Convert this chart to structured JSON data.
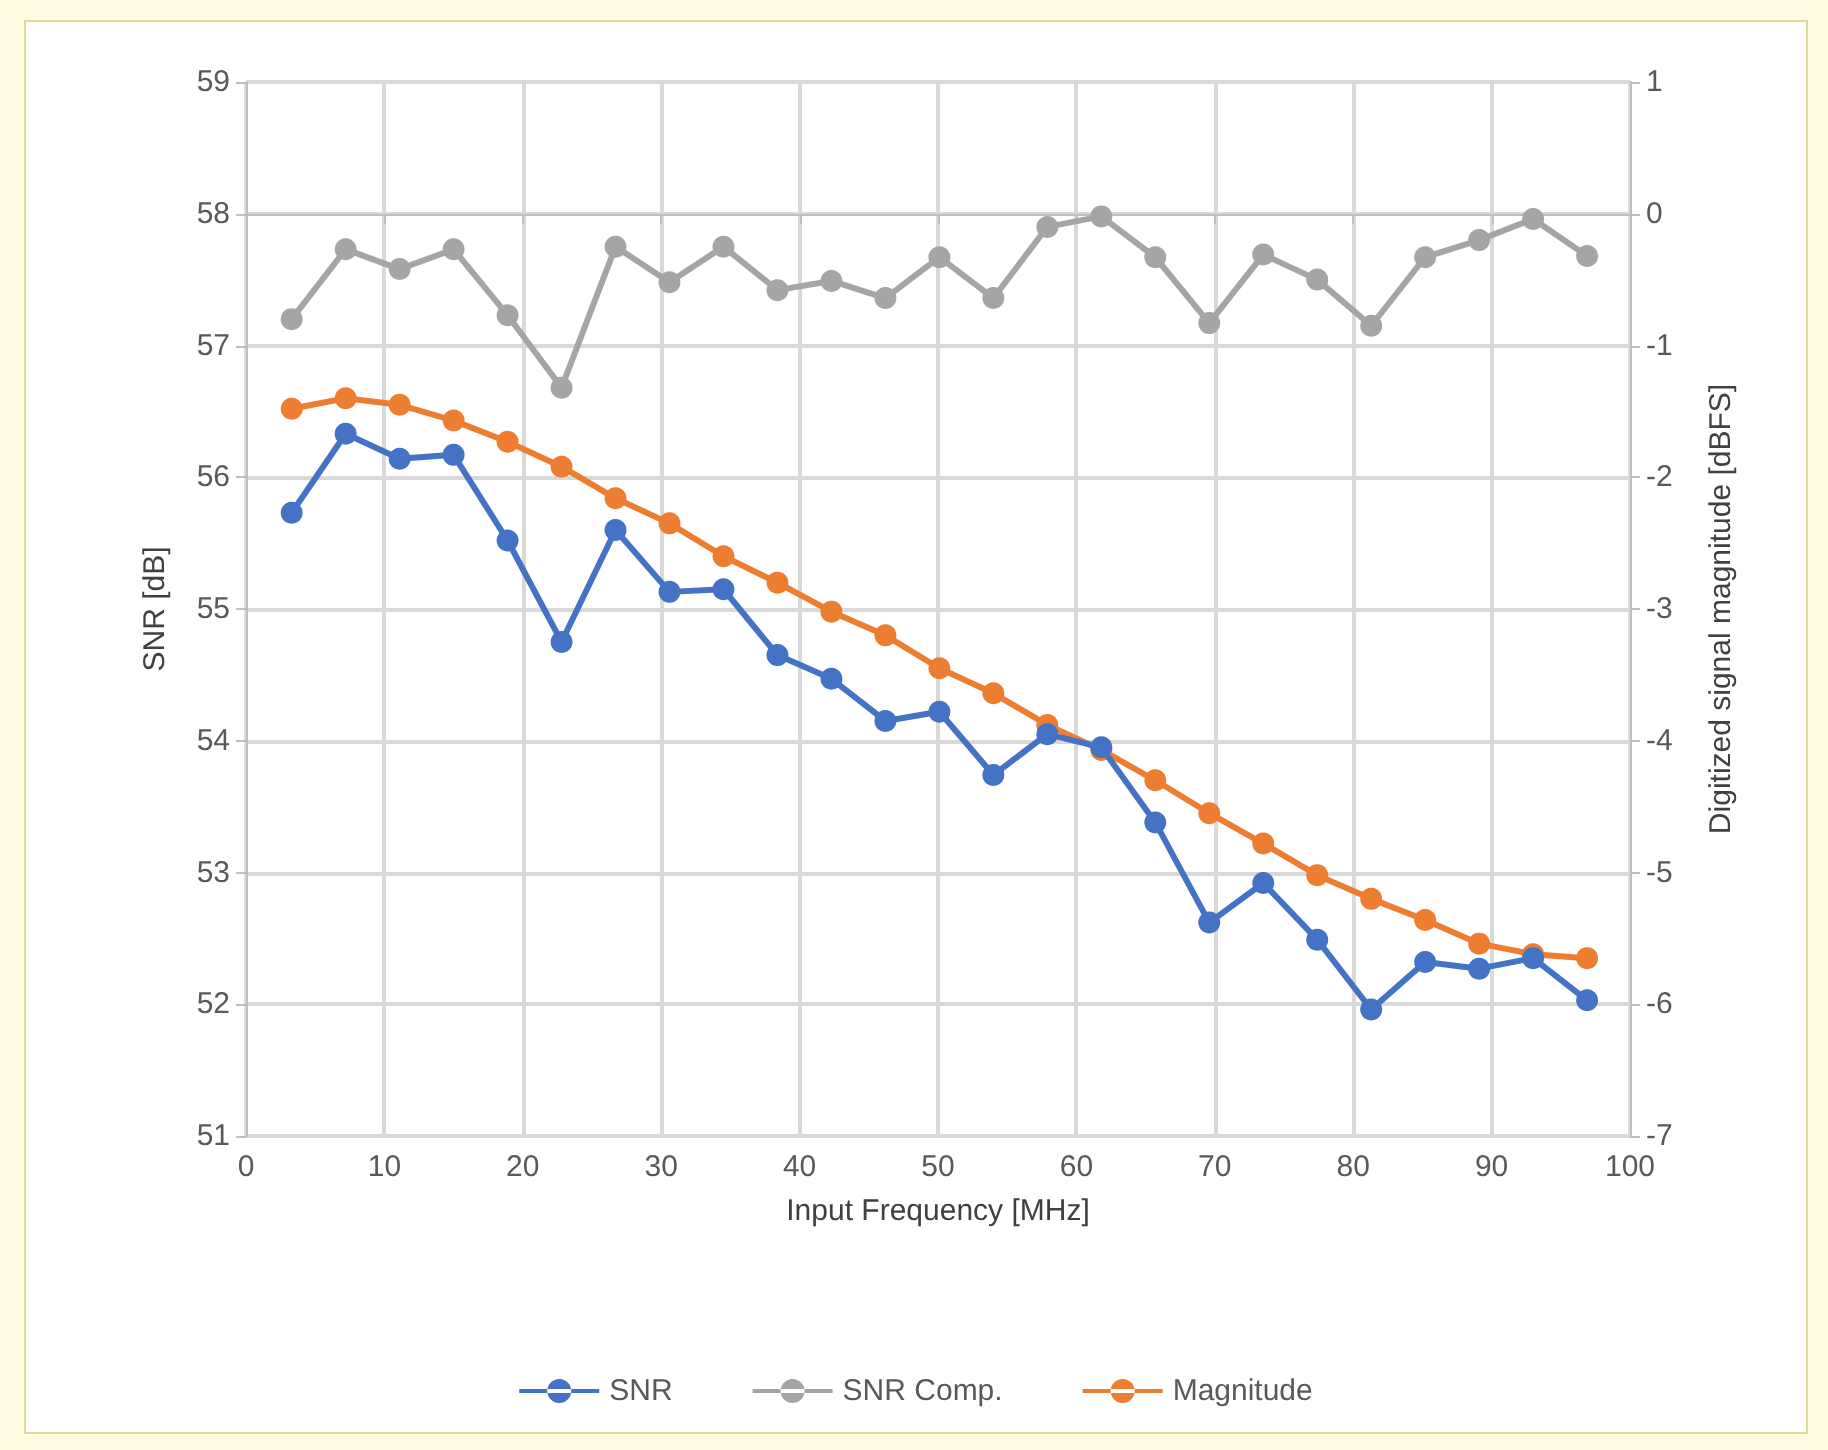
{
  "chart_data": {
    "type": "line",
    "xlabel": "Input Frequency [MHz]",
    "ylabel": "SNR [dB]",
    "y2label": "Digitized signal magnitude [dBFS]",
    "x": [
      3.3,
      7.2,
      11.1,
      15.0,
      18.9,
      22.8,
      26.7,
      30.6,
      34.5,
      38.4,
      42.3,
      46.2,
      50.1,
      54.0,
      57.9,
      61.8,
      65.7,
      69.6,
      73.5,
      77.4,
      81.3,
      85.2,
      89.1,
      93.0,
      96.9
    ],
    "series": [
      {
        "name": "SNR",
        "color": "#4472c4",
        "values": [
          55.73,
          56.33,
          56.14,
          56.17,
          55.52,
          54.75,
          55.6,
          55.13,
          55.15,
          54.65,
          54.47,
          54.15,
          54.22,
          53.74,
          54.05,
          53.95,
          53.38,
          52.62,
          52.92,
          52.49,
          51.96,
          52.32,
          52.27,
          52.35,
          52.03
        ]
      },
      {
        "name": "SNR Comp.",
        "color": "#a5a5a5",
        "values": [
          57.2,
          57.73,
          57.58,
          57.73,
          57.23,
          56.68,
          57.75,
          57.48,
          57.75,
          57.42,
          57.49,
          57.36,
          57.67,
          57.36,
          57.9,
          57.98,
          57.67,
          57.17,
          57.69,
          57.5,
          57.15,
          57.67,
          57.8,
          57.96,
          57.68
        ]
      },
      {
        "name": "Magnitude",
        "color": "#ed7d31",
        "axis": "y2",
        "values": [
          -1.48,
          -1.4,
          -1.45,
          -1.57,
          -1.73,
          -1.92,
          -2.16,
          -2.35,
          -2.6,
          -2.8,
          -3.02,
          -3.2,
          -3.45,
          -3.64,
          -3.88,
          -4.07,
          -4.3,
          -4.55,
          -4.78,
          -5.02,
          -5.2,
          -5.36,
          -5.54,
          -5.62,
          -5.65
        ]
      }
    ],
    "xlim": [
      0,
      100
    ],
    "xticks": [
      0,
      10,
      20,
      30,
      40,
      50,
      60,
      70,
      80,
      90,
      100
    ],
    "ylim": [
      51,
      59
    ],
    "yticks": [
      51,
      52,
      53,
      54,
      55,
      56,
      57,
      58,
      59
    ],
    "y2lim": [
      -7,
      1
    ],
    "y2ticks": [
      -7,
      -6,
      -5,
      -4,
      -3,
      -2,
      -1,
      0,
      1
    ],
    "grid": true,
    "legend": "bottom",
    "marker": "circle",
    "line_style": "solid"
  }
}
